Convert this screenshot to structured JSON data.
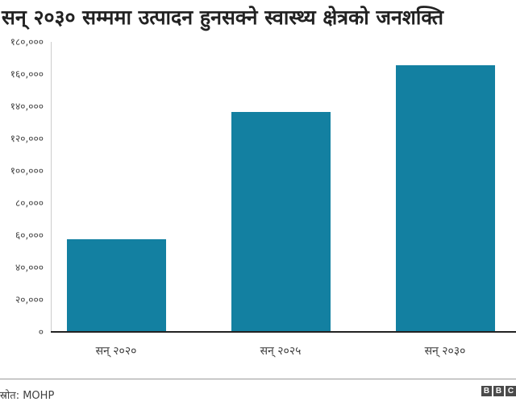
{
  "title": "सन् २०३० सम्ममा उत्पादन हुनसक्ने स्वास्थ्य क्षेत्रको जनशक्ति",
  "chart_data": {
    "type": "bar",
    "title": "सन् २०३० सम्ममा उत्पादन हुनसक्ने स्वास्थ्य क्षेत्रको जनशक्ति",
    "categories": [
      "सन् २०२०",
      "सन् २०२५",
      "सन् २०३०"
    ],
    "values": [
      57500,
      136500,
      165500
    ],
    "xlabel": "",
    "ylabel": "",
    "ylim": [
      0,
      180000
    ],
    "yticks": [
      0,
      20000,
      40000,
      60000,
      80000,
      100000,
      120000,
      140000,
      160000,
      180000
    ],
    "ytick_labels": [
      "०",
      "२०,०००",
      "४०,०००",
      "६०,०००",
      "८०,०००",
      "१००,०००",
      "१२०,०००",
      "१४०,०००",
      "१६०,०००",
      "१८०,०००"
    ],
    "grid": false,
    "legend": "none",
    "bar_color": "#1380A1"
  },
  "footer": {
    "source_label": "स्रोत:",
    "source_value": "MOHP",
    "logo": [
      "B",
      "B",
      "C"
    ]
  }
}
